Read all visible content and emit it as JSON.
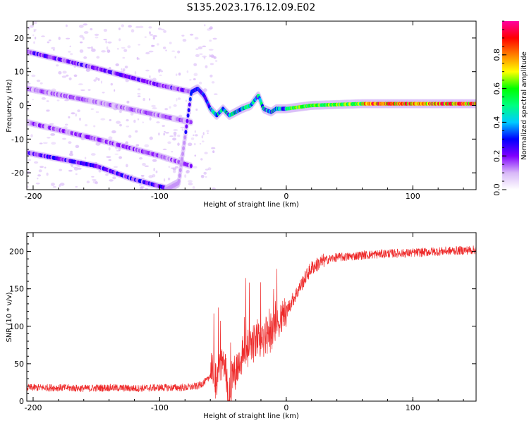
{
  "title": "S135.2023.176.12.09.E02",
  "chart_data": [
    {
      "type": "heatmap",
      "title": "S135.2023.176.12.09.E02",
      "xlabel": "Height of straight line (km)",
      "ylabel": "Frequency (Hz)",
      "xlim": [
        -205,
        150
      ],
      "ylim": [
        -25,
        25
      ],
      "xticks": [
        -200,
        -100,
        0,
        100
      ],
      "yticks": [
        -20,
        -10,
        0,
        10,
        20
      ],
      "colorbar": {
        "label": "Normalized spectral amplitude",
        "range": [
          0,
          1
        ],
        "ticks": [
          "0.0",
          "0.2",
          "0.4",
          "0.6",
          "0.8"
        ],
        "colormap": [
          "#ffffff",
          "#d8b8f8",
          "#8000ff",
          "#0000ff",
          "#00ccff",
          "#00ff80",
          "#00ff00",
          "#ffff00",
          "#ff8000",
          "#ff0000",
          "#ff00a0"
        ]
      },
      "tracks": [
        {
          "x": [
            -205,
            -150,
            -100,
            -75
          ],
          "y": [
            16,
            11,
            6,
            4
          ],
          "amplitude": 0.18
        },
        {
          "x": [
            -205,
            -150,
            -100,
            -75
          ],
          "y": [
            5,
            1,
            -3,
            -5
          ],
          "amplitude": 0.12
        },
        {
          "x": [
            -205,
            -150,
            -100,
            -75
          ],
          "y": [
            -5,
            -10,
            -15,
            -18
          ],
          "amplitude": 0.14
        },
        {
          "x": [
            -205,
            -150,
            -120,
            -90
          ],
          "y": [
            -14,
            -18,
            -22,
            -25
          ],
          "amplitude": 0.2
        },
        {
          "x": [
            -95,
            -85,
            -75,
            -70,
            -65,
            -60,
            -55,
            -50,
            -45,
            -40,
            -35,
            -28,
            -22,
            -18,
            -12,
            -8,
            0,
            20,
            60,
            100,
            150
          ],
          "y": [
            -25,
            -23,
            4,
            5,
            3,
            -1,
            -3,
            -1,
            -3,
            -2,
            -1,
            0,
            3,
            -1,
            -2,
            -1,
            -1,
            0,
            0.5,
            0.5,
            0.5
          ],
          "amplitude": 0.8
        }
      ]
    },
    {
      "type": "line",
      "xlabel": "Height of straight line (km)",
      "ylabel": "SNR (10 * v/v)",
      "xlim": [
        -205,
        150
      ],
      "ylim": [
        0,
        225
      ],
      "xticks": [
        -200,
        -100,
        0,
        100
      ],
      "yticks": [
        0,
        50,
        100,
        150,
        200
      ],
      "series": [
        {
          "color": "#ee2a2a",
          "x": [
            -205,
            -180,
            -160,
            -140,
            -120,
            -100,
            -80,
            -70,
            -62,
            -58,
            -55,
            -52,
            -48,
            -45,
            -42,
            -38,
            -35,
            -30,
            -25,
            -20,
            -15,
            -10,
            -5,
            0,
            5,
            10,
            15,
            20,
            30,
            40,
            50,
            60,
            80,
            100,
            120,
            150
          ],
          "y": [
            18,
            18,
            17,
            18,
            17,
            18,
            18,
            20,
            28,
            45,
            20,
            55,
            40,
            10,
            35,
            50,
            60,
            75,
            80,
            85,
            90,
            100,
            110,
            120,
            135,
            150,
            165,
            178,
            188,
            192,
            193,
            195,
            197,
            198,
            200,
            202
          ]
        }
      ]
    }
  ]
}
